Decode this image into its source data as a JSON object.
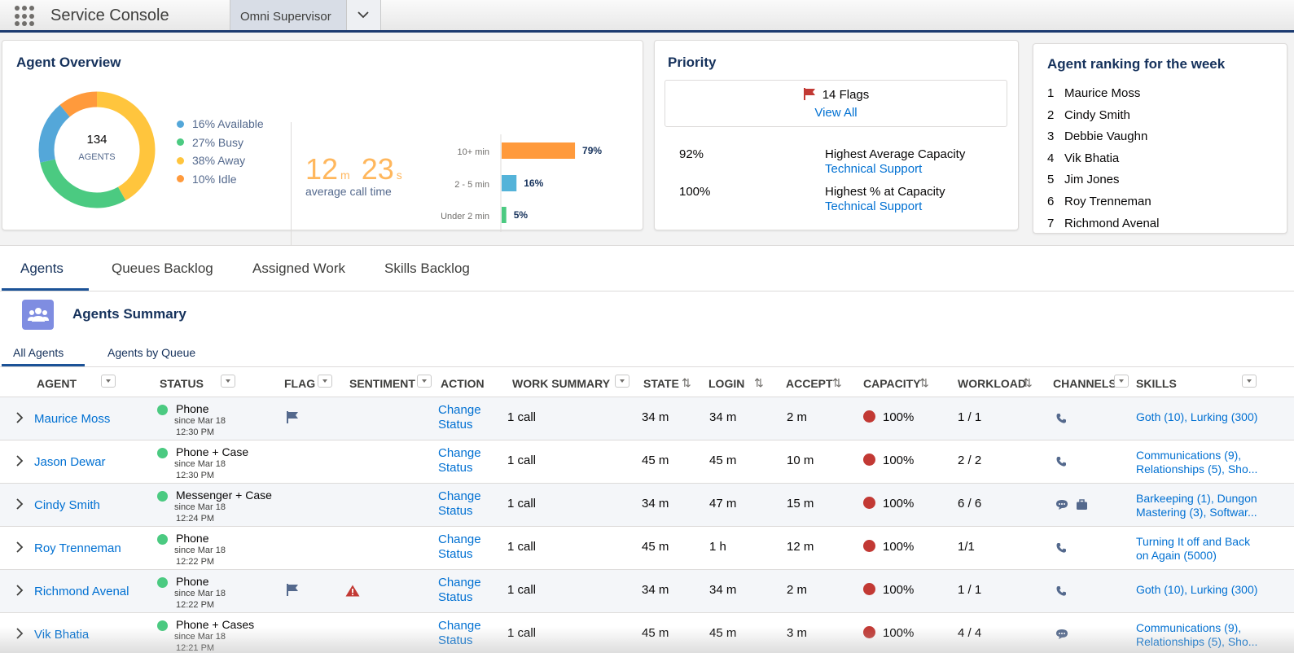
{
  "header": {
    "app_name": "Service Console",
    "tab_label": "Omni Supervisor"
  },
  "agent_overview": {
    "title": "Agent Overview",
    "total_agents": "134",
    "agents_label": "AGENTS",
    "legend": [
      {
        "label": "16% Available",
        "color": "#54a7d9",
        "pct": 16
      },
      {
        "label": "27% Busy",
        "color": "#4bca81",
        "pct": 27
      },
      {
        "label": "38% Away",
        "color": "#ffc53d",
        "pct": 38
      },
      {
        "label": "10% Idle",
        "color": "#ff9a3c",
        "pct": 10
      }
    ],
    "call_time": {
      "minutes": "12",
      "min_unit": "m",
      "seconds": "23",
      "sec_unit": "s",
      "label": "average call time"
    },
    "chart_data": {
      "type": "bar",
      "orientation": "horizontal",
      "categories": [
        "10+ min",
        "2 - 5 min",
        "Under 2 min"
      ],
      "values": [
        79,
        16,
        5
      ],
      "value_labels": [
        "79%",
        "16%",
        "5%"
      ],
      "colors": [
        "#ff9a3c",
        "#54b3d9",
        "#4bca81"
      ],
      "xlim": [
        0,
        100
      ]
    }
  },
  "priority": {
    "title": "Priority",
    "flags_text": "14 Flags",
    "view_all": "View All",
    "rows": [
      {
        "value": "92%",
        "desc": "Highest Average Capacity",
        "link": "Technical Support"
      },
      {
        "value": "100%",
        "desc": "Highest % at Capacity",
        "link": "Technical Support"
      }
    ]
  },
  "ranking": {
    "title": "Agent ranking for the week",
    "items": [
      {
        "num": "1",
        "name": "Maurice Moss"
      },
      {
        "num": "2",
        "name": "Cindy Smith"
      },
      {
        "num": "3",
        "name": "Debbie Vaughn"
      },
      {
        "num": "4",
        "name": "Vik Bhatia"
      },
      {
        "num": "5",
        "name": "Jim Jones"
      },
      {
        "num": "6",
        "name": "Roy Trenneman"
      },
      {
        "num": "7",
        "name": "Richmond Avenal"
      }
    ]
  },
  "main_tabs": [
    "Agents",
    "Queues Backlog",
    "Assigned Work",
    "Skills Backlog"
  ],
  "summary_title": "Agents Summary",
  "sub_tabs": [
    "All Agents",
    "Agents by Queue"
  ],
  "columns": {
    "agent": "AGENT",
    "status": "STATUS",
    "flag": "FLAG",
    "sentiment": "SENTIMENT",
    "action": "ACTION",
    "work_summary": "WORK SUMMARY",
    "state": "STATE",
    "login": "LOGIN",
    "accept": "ACCEPT",
    "capacity": "CAPACITY",
    "workload": "WORKLOAD",
    "channels": "CHANNELS",
    "skills": "SKILLS"
  },
  "rows": [
    {
      "agent": "Maurice Moss",
      "status": "Phone",
      "since": "since Mar 18",
      "time": "12:30 PM",
      "flag": true,
      "warn": false,
      "action1": "Change",
      "action2": "Status",
      "work": "1 call",
      "state": "34 m",
      "login": "34 m",
      "accept": "2 m",
      "capacity": "100%",
      "workload": "1 / 1",
      "channels": [
        "phone-icon"
      ],
      "skills1": "Goth (10), Lurking (300)",
      "skills2": ""
    },
    {
      "agent": "Jason Dewar",
      "status": "Phone + Case",
      "since": "since Mar 18",
      "time": "12:30 PM",
      "flag": false,
      "warn": false,
      "action1": "Change",
      "action2": "Status",
      "work": "1 call",
      "state": "45 m",
      "login": "45 m",
      "accept": "10 m",
      "capacity": "100%",
      "workload": "2 / 2",
      "channels": [
        "phone-icon"
      ],
      "skills1": "Communications (9),",
      "skills2": "Relationships (5), Sho..."
    },
    {
      "agent": "Cindy Smith",
      "status": "Messenger + Case",
      "since": "since Mar 18",
      "time": "12:24 PM",
      "flag": false,
      "warn": false,
      "action1": "Change",
      "action2": "Status",
      "work": "1 call",
      "state": "34 m",
      "login": "47 m",
      "accept": "15 m",
      "capacity": "100%",
      "workload": "6 / 6",
      "channels": [
        "chat-icon",
        "briefcase-icon"
      ],
      "skills1": "Barkeeping (1), Dungon",
      "skills2": "Mastering (3), Softwar..."
    },
    {
      "agent": "Roy Trenneman",
      "status": "Phone",
      "since": "since Mar 18",
      "time": "12:22 PM",
      "flag": false,
      "warn": false,
      "action1": "Change",
      "action2": "Status",
      "work": "1 call",
      "state": "45 m",
      "login": "1 h",
      "accept": "12 m",
      "capacity": "100%",
      "workload": "1/1",
      "channels": [
        "phone-icon"
      ],
      "skills1": "Turning It off and Back",
      "skills2": "on Again (5000)"
    },
    {
      "agent": "Richmond Avenal",
      "status": "Phone",
      "since": "since Mar 18",
      "time": "12:22 PM",
      "flag": true,
      "warn": true,
      "action1": "Change",
      "action2": "Status",
      "work": "1 call",
      "state": "34 m",
      "login": "34 m",
      "accept": "2 m",
      "capacity": "100%",
      "workload": "1 / 1",
      "channels": [
        "phone-icon"
      ],
      "skills1": "Goth (10), Lurking (300)",
      "skills2": ""
    },
    {
      "agent": "Vik Bhatia",
      "status": "Phone + Cases",
      "since": "since Mar 18",
      "time": "12:21 PM",
      "flag": false,
      "warn": false,
      "action1": "Change",
      "action2": "Status",
      "work": "1 call",
      "state": "45 m",
      "login": "45 m",
      "accept": "3 m",
      "capacity": "100%",
      "workload": "4 / 4",
      "channels": [
        "chat-icon"
      ],
      "skills1": "Communications (9),",
      "skills2": "Relationships (5), Sho..."
    }
  ]
}
